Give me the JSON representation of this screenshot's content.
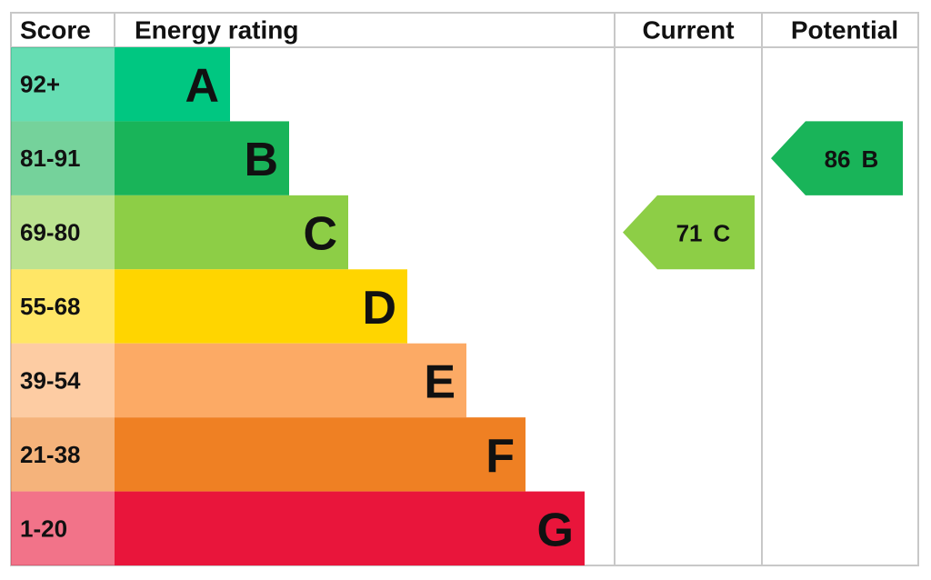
{
  "header": {
    "score": "Score",
    "energy_rating": "Energy rating",
    "current": "Current",
    "potential": "Potential"
  },
  "bands": [
    {
      "score": "92+",
      "rating": "A",
      "color": "#00c781"
    },
    {
      "score": "81-91",
      "rating": "B",
      "color": "#19b459"
    },
    {
      "score": "69-80",
      "rating": "C",
      "color": "#8dce46"
    },
    {
      "score": "55-68",
      "rating": "D",
      "color": "#ffd500"
    },
    {
      "score": "39-54",
      "rating": "E",
      "color": "#fcaa65"
    },
    {
      "score": "21-38",
      "rating": "F",
      "color": "#ef8023"
    },
    {
      "score": "1-20",
      "rating": "G",
      "color": "#e9153b"
    }
  ],
  "current": {
    "score": 71,
    "rating": "C"
  },
  "potential": {
    "score": 86,
    "rating": "B"
  }
}
